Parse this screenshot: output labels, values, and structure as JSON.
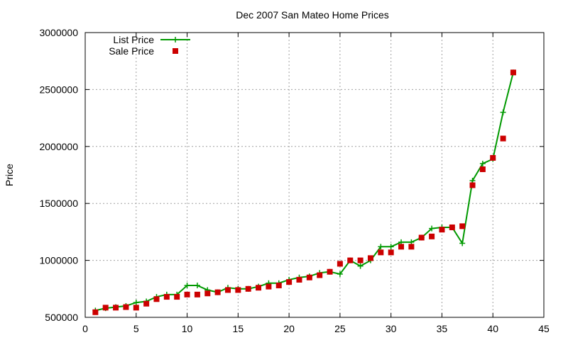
{
  "chart_data": {
    "type": "line",
    "title": "Dec 2007 San Mateo Home Prices",
    "xlabel": "",
    "ylabel": "Price",
    "xlim": [
      0,
      45
    ],
    "ylim": [
      500000,
      3000000
    ],
    "x_ticks": [
      "0",
      "5",
      "10",
      "15",
      "20",
      "25",
      "30",
      "35",
      "40",
      "45"
    ],
    "y_ticks": [
      "500000",
      "1000000",
      "1500000",
      "2000000",
      "2500000",
      "3000000"
    ],
    "grid": true,
    "legend_position": "top-left",
    "series": [
      {
        "name": "List Price",
        "style": "line+cross",
        "color": "#009900",
        "x": [
          1,
          2,
          3,
          4,
          5,
          6,
          7,
          8,
          9,
          10,
          11,
          12,
          13,
          14,
          15,
          16,
          17,
          18,
          19,
          20,
          21,
          22,
          23,
          24,
          25,
          26,
          27,
          28,
          29,
          30,
          31,
          32,
          33,
          34,
          35,
          36,
          37,
          38,
          39,
          40,
          41,
          42
        ],
        "values": [
          560000,
          580000,
          590000,
          600000,
          630000,
          640000,
          680000,
          700000,
          700000,
          780000,
          780000,
          740000,
          720000,
          760000,
          750000,
          750000,
          770000,
          800000,
          800000,
          830000,
          850000,
          860000,
          890000,
          900000,
          880000,
          1000000,
          950000,
          1000000,
          1120000,
          1120000,
          1160000,
          1160000,
          1200000,
          1280000,
          1290000,
          1290000,
          1150000,
          1700000,
          1850000,
          1890000,
          2300000,
          2650000
        ]
      },
      {
        "name": "Sale Price",
        "style": "square-points",
        "color": "#cc0000",
        "x": [
          1,
          2,
          3,
          4,
          5,
          6,
          7,
          8,
          9,
          10,
          11,
          12,
          13,
          14,
          15,
          16,
          17,
          18,
          19,
          20,
          21,
          22,
          23,
          24,
          25,
          26,
          27,
          28,
          29,
          30,
          31,
          32,
          33,
          34,
          35,
          36,
          37,
          38,
          39,
          40,
          41,
          42
        ],
        "values": [
          545000,
          585000,
          585000,
          590000,
          585000,
          620000,
          660000,
          680000,
          680000,
          700000,
          700000,
          710000,
          720000,
          740000,
          740000,
          750000,
          760000,
          770000,
          780000,
          810000,
          830000,
          850000,
          870000,
          900000,
          970000,
          1000000,
          1000000,
          1020000,
          1070000,
          1070000,
          1120000,
          1120000,
          1200000,
          1210000,
          1270000,
          1290000,
          1300000,
          1660000,
          1800000,
          1900000,
          2070000,
          2650000
        ]
      }
    ]
  }
}
